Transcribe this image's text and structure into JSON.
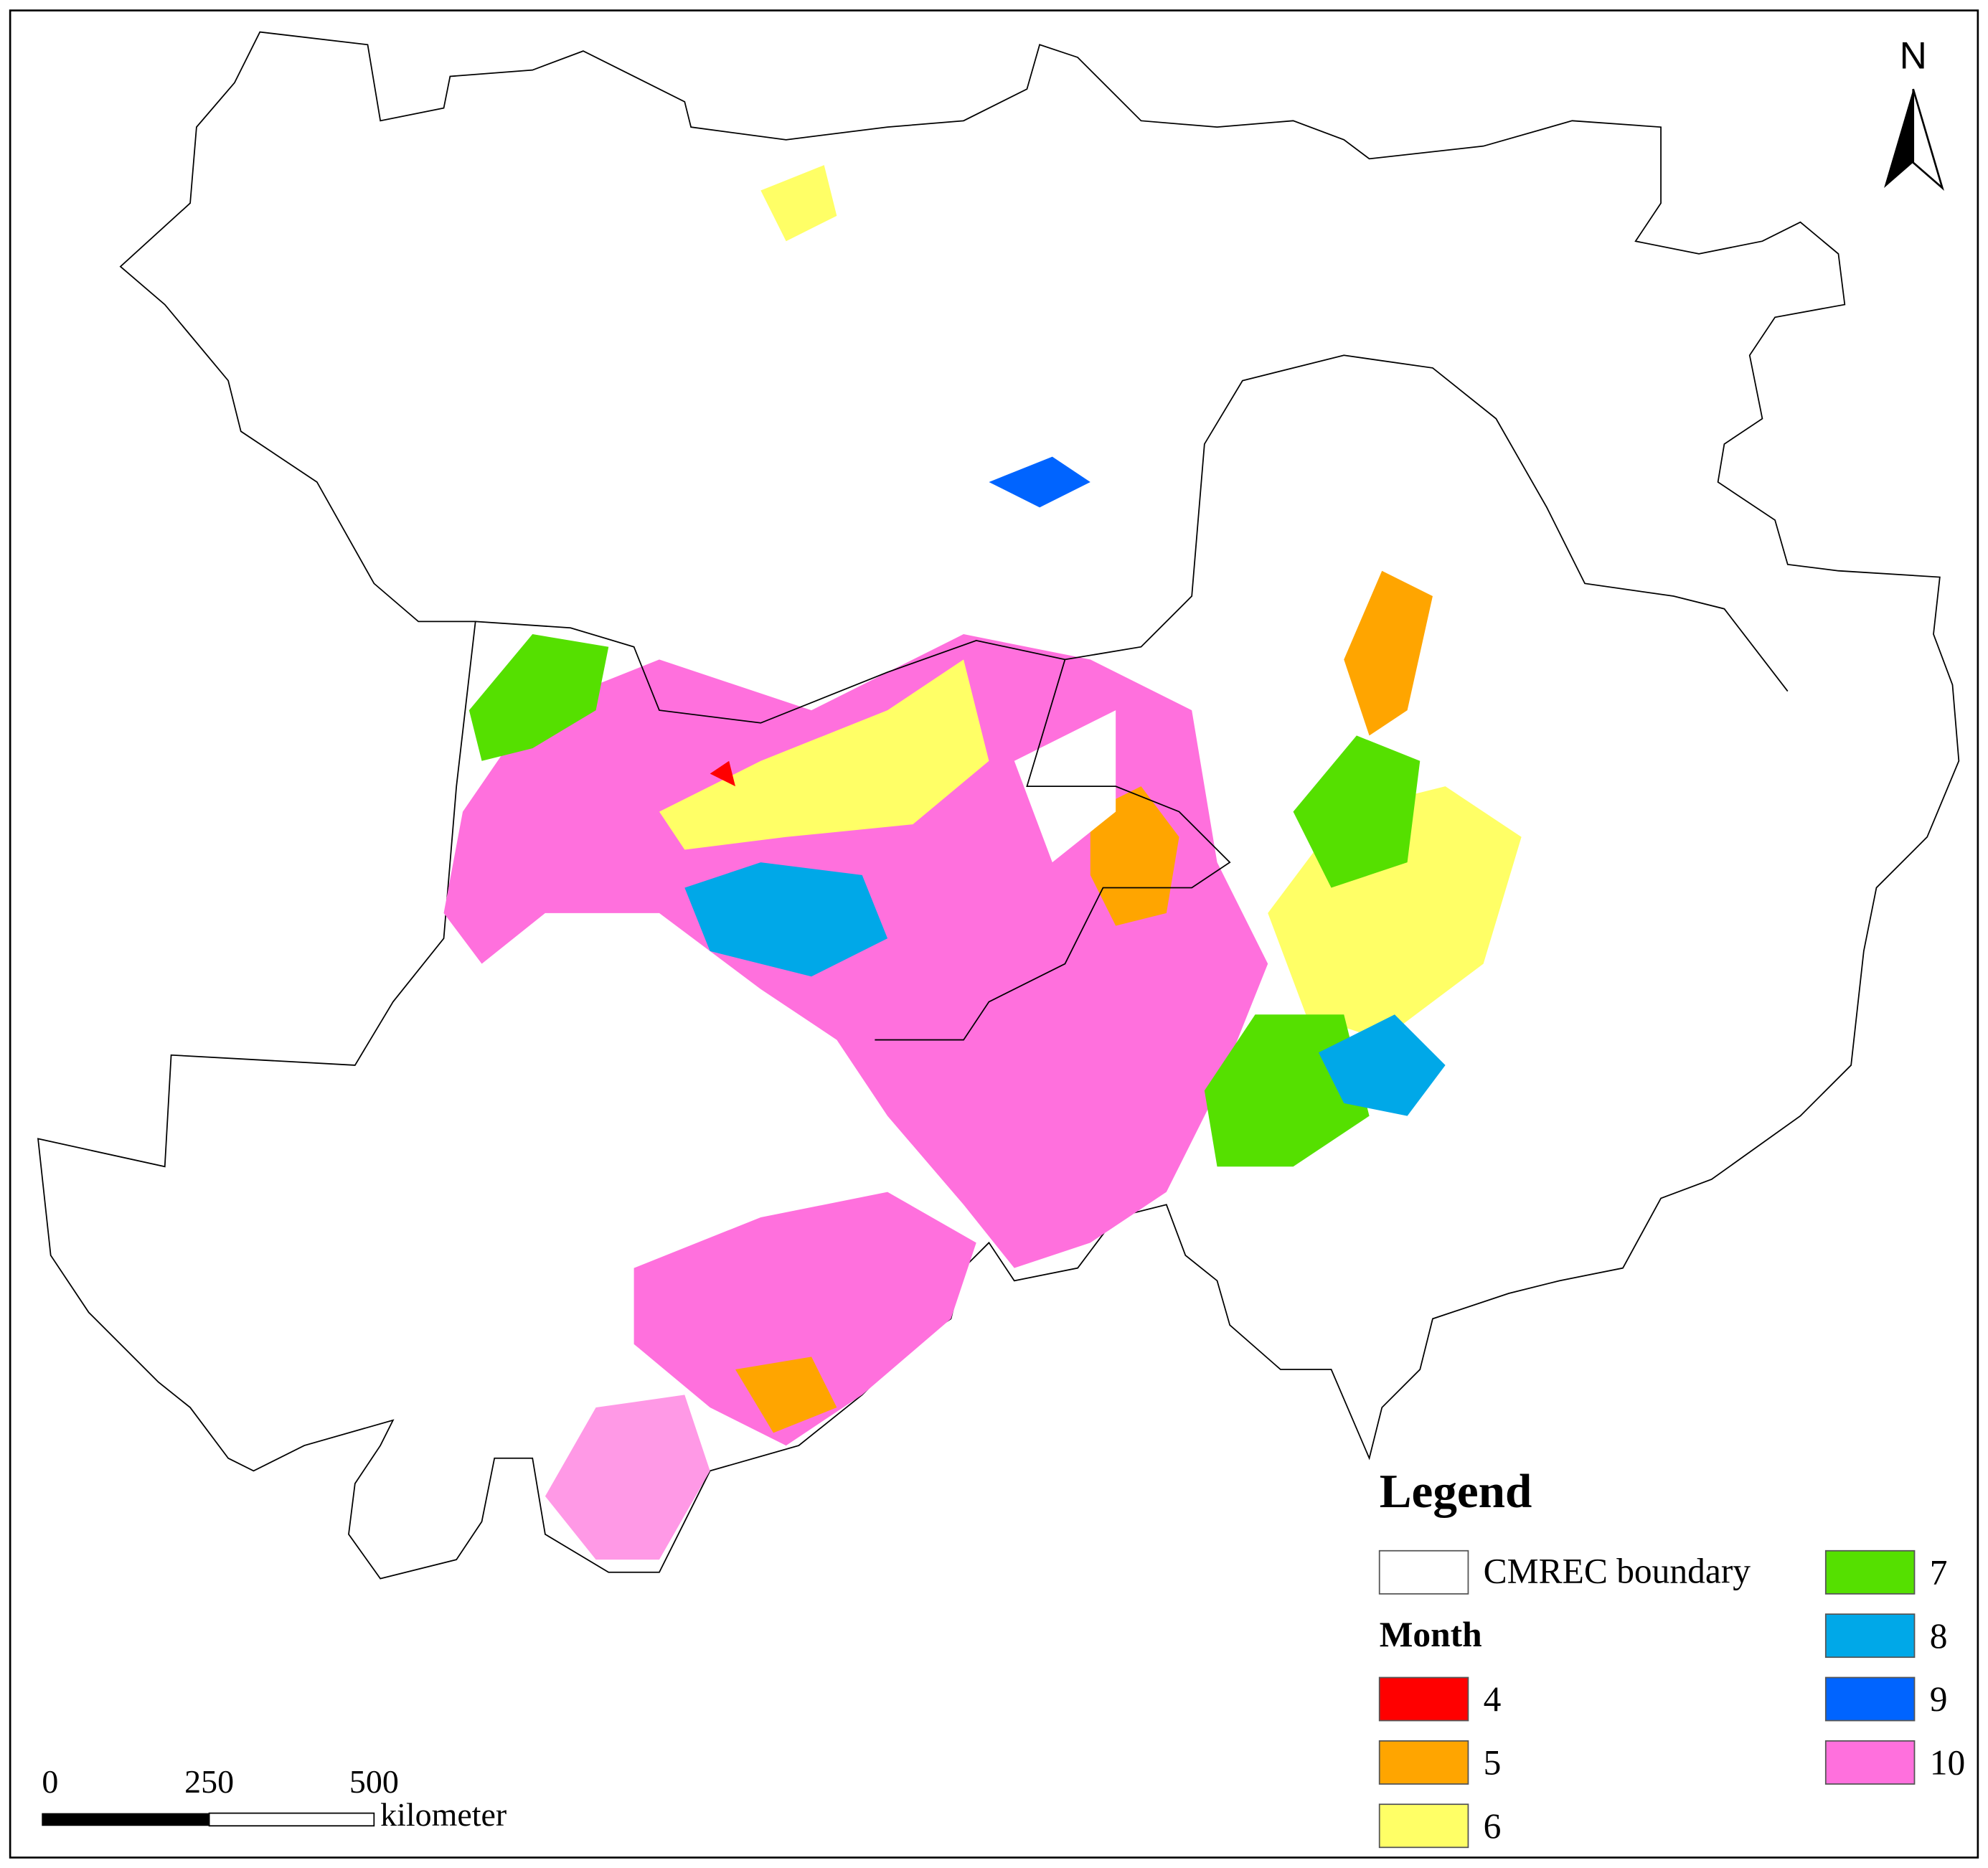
{
  "north": "N",
  "legend": {
    "title": "Legend",
    "boundary": "CMREC boundary",
    "month_title": "Month",
    "months": [
      {
        "label": "4",
        "color": "#ff0000"
      },
      {
        "label": "5",
        "color": "#ffa500"
      },
      {
        "label": "6",
        "color": "#ffff66"
      },
      {
        "label": "7",
        "color": "#55e000"
      },
      {
        "label": "8",
        "color": "#00a8e8"
      },
      {
        "label": "9",
        "color": "#0064ff"
      },
      {
        "label": "10",
        "color": "#ff70dd"
      }
    ]
  },
  "scale_bar": {
    "labels": [
      "0",
      "250",
      "500"
    ],
    "unit": "kilometer"
  }
}
